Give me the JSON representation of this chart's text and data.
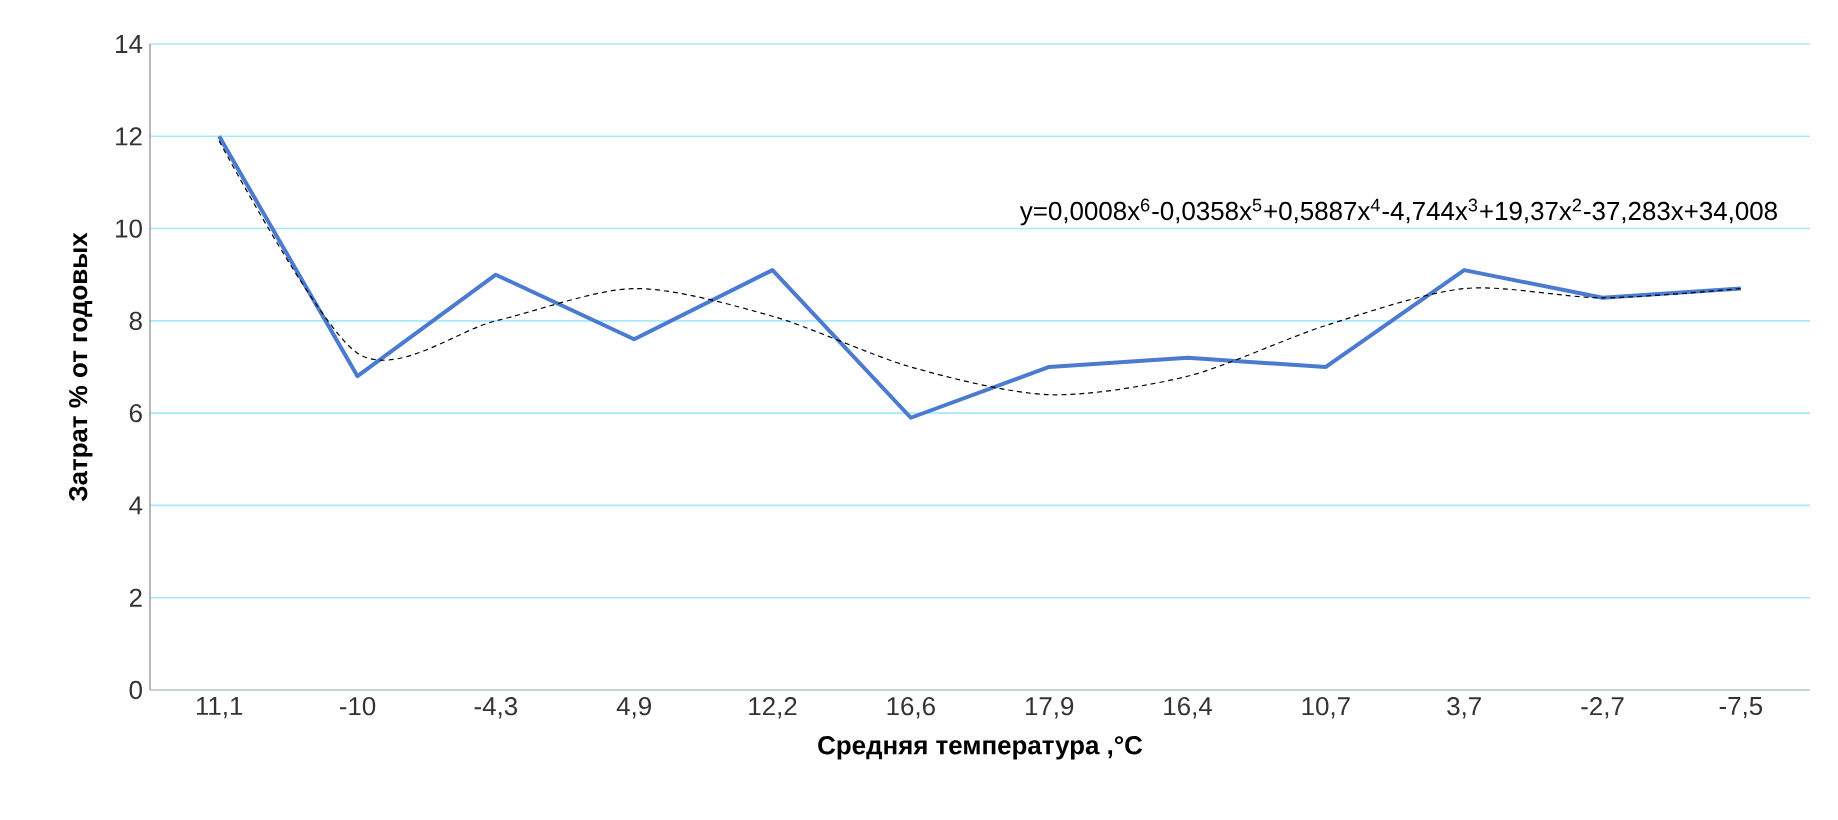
{
  "chart_data": {
    "type": "line",
    "xlabel": "Средняя температура ,°C",
    "ylabel": "Затрат % от годовых",
    "categories": [
      "11,1",
      "-10",
      "-4,3",
      "4,9",
      "12,2",
      "16,6",
      "17,9",
      "16,4",
      "10,7",
      "3,7",
      "-2,7",
      "-7,5"
    ],
    "series": [
      {
        "color": "#4a7bd0",
        "values": [
          12,
          6.8,
          9.0,
          7.6,
          9.1,
          5.9,
          7.0,
          7.2,
          7.0,
          9.1,
          8.5,
          8.7
        ],
        "line_style": "solid"
      },
      {
        "color": "#000000",
        "values": [
          11.9,
          7.3,
          8.0,
          8.7,
          8.1,
          7.0,
          6.4,
          6.8,
          7.9,
          8.7,
          8.5,
          8.7
        ],
        "line_style": "dashed"
      }
    ],
    "ylim": [
      0,
      14
    ],
    "yticks": [
      0,
      2,
      4,
      6,
      8,
      10,
      12,
      14
    ],
    "grid": "y",
    "marker": "none",
    "annotations": [
      "y=0,0008x$^{6}$-0,0358x$^{5}$+0,5887x$^{4}$-4,744x$^{3}$+19,37x$^{2}$-37,283x+34,008"
    ]
  }
}
